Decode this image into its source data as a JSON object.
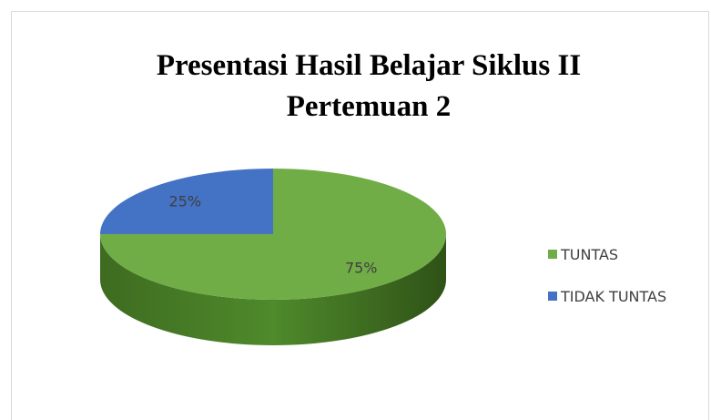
{
  "chart_data": {
    "type": "pie",
    "title": [
      "Presentasi Hasil Belajar Siklus II",
      "Pertemuan 2"
    ],
    "categories": [
      "TUNTAS",
      "TIDAK TUNTAS"
    ],
    "values": [
      75,
      25
    ],
    "value_labels": [
      "75%",
      "25%"
    ],
    "colors": [
      "#70ad47",
      "#4472c4"
    ],
    "legend": "right"
  }
}
